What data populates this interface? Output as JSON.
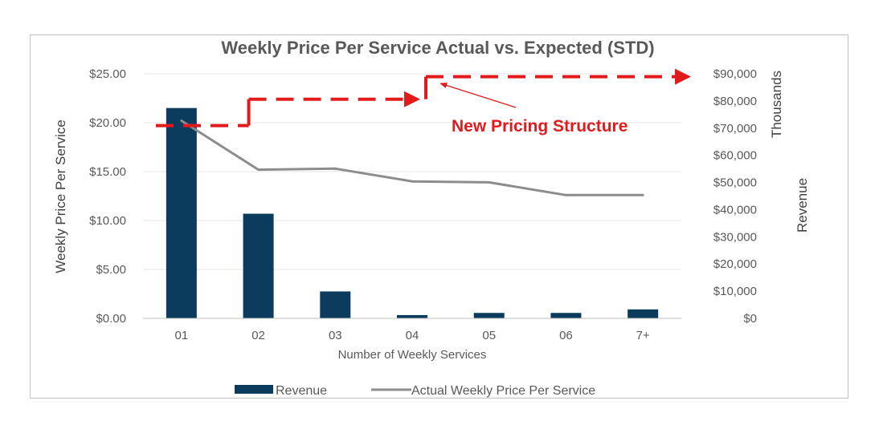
{
  "chart_data": {
    "type": "bar",
    "title": "Weekly Price Per Service Actual vs. Expected (STD)",
    "xlabel": "Number of Weekly Services",
    "ylabel_left": "Weekly Price Per Service",
    "ylabel_right": "Revenue",
    "right_units_label": "Thousands",
    "categories": [
      "01",
      "02",
      "03",
      "04",
      "05",
      "06",
      "7+"
    ],
    "y_left": {
      "ylim": [
        0,
        25
      ],
      "ticks": [
        0,
        5,
        10,
        15,
        20,
        25
      ],
      "tick_labels": [
        "$0.00",
        "$5.00",
        "$10.00",
        "$15.00",
        "$20.00",
        "$25.00"
      ]
    },
    "y_right": {
      "ylim": [
        0,
        90000
      ],
      "ticks": [
        0,
        10000,
        20000,
        30000,
        40000,
        50000,
        60000,
        70000,
        80000,
        90000
      ],
      "tick_labels": [
        "$0",
        "$10,000",
        "$20,000",
        "$30,000",
        "$40,000",
        "$50,000",
        "$60,000",
        "$70,000",
        "$80,000",
        "$90,000"
      ]
    },
    "series": [
      {
        "name": "Revenue",
        "type": "bar",
        "axis": "right",
        "color": "#0b3c5d",
        "values": [
          77400,
          38500,
          9900,
          1200,
          2000,
          2000,
          3300
        ]
      },
      {
        "name": "Actual Weekly Price Per Service",
        "type": "line",
        "axis": "left",
        "color": "#8c8c8c",
        "values": [
          20.2,
          15.2,
          15.3,
          14.0,
          13.9,
          12.6,
          12.6
        ]
      },
      {
        "type": "step",
        "axis": "left",
        "color": "#e31a1c",
        "style": "dashed",
        "steps": [
          {
            "x_start": "01",
            "x_end": "02",
            "value": 19.7
          },
          {
            "x_start": "02",
            "x_end": "04",
            "value": 22.4
          },
          {
            "x_start": "04",
            "x_end": "7+",
            "value": 24.7
          }
        ]
      }
    ],
    "annotations": [
      {
        "text": "New Pricing Structure",
        "color": "#e31a1c",
        "points_to": "04"
      }
    ],
    "grid": true,
    "legend_position": "bottom"
  }
}
